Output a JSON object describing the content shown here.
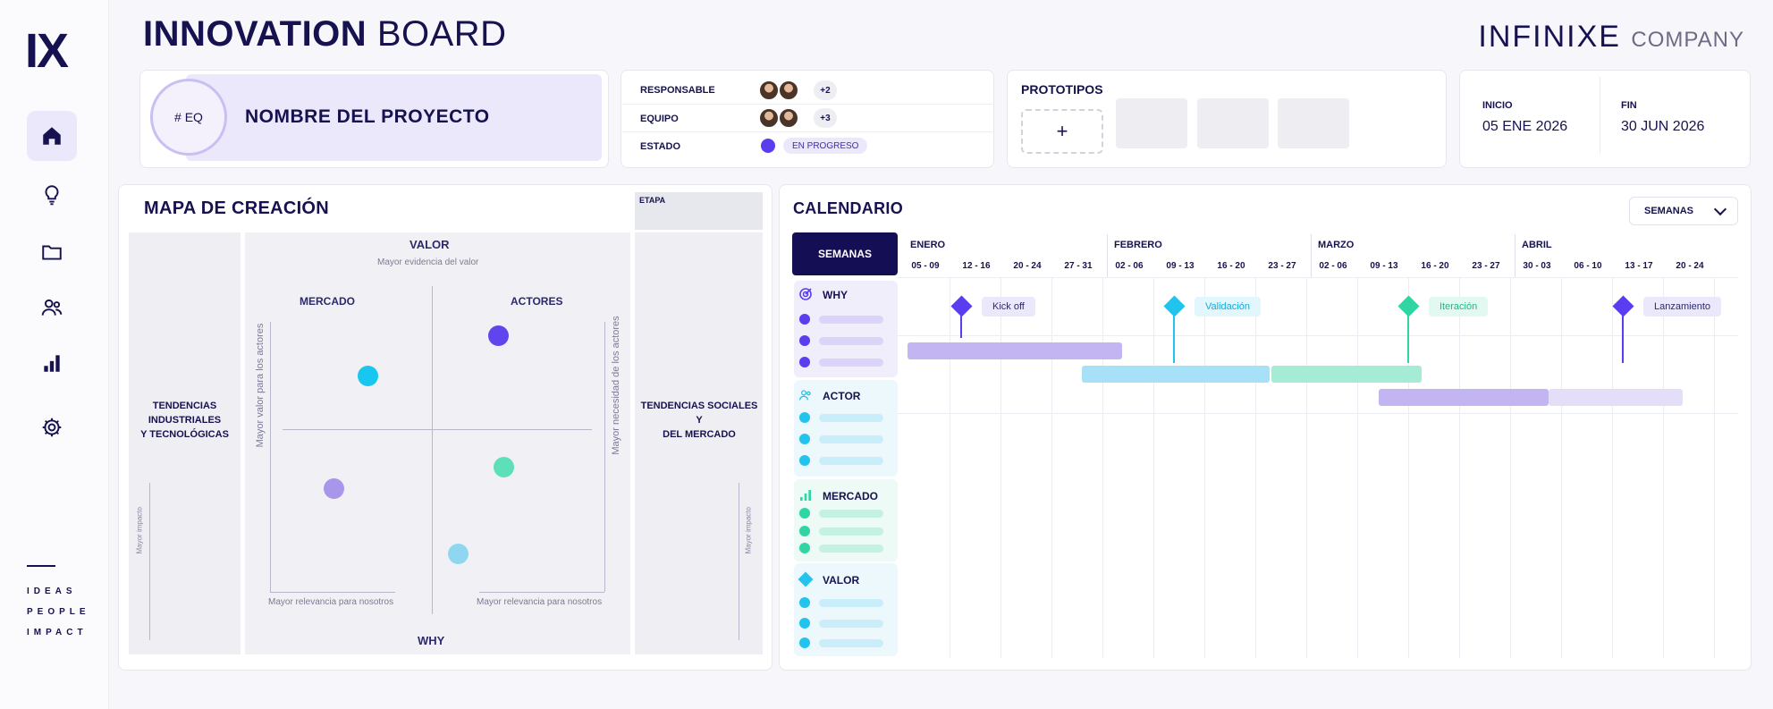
{
  "sidebar": {
    "logo": "IX",
    "nav": [
      "home-icon",
      "lightbulb-icon",
      "folder-icon",
      "users-icon",
      "bar-chart-icon",
      "gear-icon"
    ],
    "tagline": [
      "IDEAS",
      "PEOPLE",
      "IMPACT"
    ]
  },
  "header": {
    "title_bold": "INNOVATION",
    "title_light": "BOARD",
    "brand_main": "INFINIXE",
    "brand_sub": "COMPANY"
  },
  "project": {
    "team_code": "# EQ",
    "name": "NOMBRE DEL PROYECTO"
  },
  "info": {
    "responsable_label": "RESPONSABLE",
    "responsable_more": "+2",
    "equipo_label": "EQUIPO",
    "equipo_more": "+3",
    "estado_label": "ESTADO",
    "estado_value": "EN PROGRESO"
  },
  "prototypes": {
    "title": "PROTOTIPOS",
    "add": "+"
  },
  "dates": {
    "start_label": "INICIO",
    "start_value": "05 ENE 2026",
    "end_label": "FIN",
    "end_value": "30 JUN 2026"
  },
  "map": {
    "title": "MAPA DE CREACIÓN",
    "stage_label": "ETAPA",
    "left_text": [
      "TENDENCIAS",
      "INDUSTRIALES",
      "Y TECNOLÓGICAS"
    ],
    "right_text": [
      "TENDENCIAS SOCIALES Y",
      "DEL MERCADO"
    ],
    "side_small": "Mayor impacto",
    "top_label": "VALOR",
    "top_sub": "Mayor evidencia del valor",
    "bottom_label": "WHY",
    "q_left": "MERCADO",
    "q_right": "ACTORES",
    "left_axis": "Mayor valor para los actores",
    "right_axis": "Mayor necesidad de los actores",
    "bottom_left": "Mayor relevancia para nosotros",
    "bottom_right": "Mayor relevancia para nosotros"
  },
  "calendar": {
    "title": "CALENDARIO",
    "select_value": "SEMANAS",
    "weeks_label": "SEMANAS",
    "months": [
      "ENERO",
      "FEBRERO",
      "MARZO",
      "ABRIL"
    ],
    "weeks": [
      "05 - 09",
      "12 - 16",
      "20 - 24",
      "27 - 31",
      "02 - 06",
      "09 - 13",
      "16 - 20",
      "23 - 27",
      "02 - 06",
      "09 - 13",
      "16 - 20",
      "23 - 27",
      "30 - 03",
      "06 - 10",
      "13 - 17",
      "20 - 24"
    ],
    "categories": [
      {
        "name": "WHY",
        "icon": "target-icon",
        "color": "#5b3df0"
      },
      {
        "name": "ACTOR",
        "icon": "users-icon",
        "color": "#22c4ee"
      },
      {
        "name": "MERCADO",
        "icon": "bar-chart-icon",
        "color": "#2fd6a4"
      },
      {
        "name": "VALOR",
        "icon": "diamond-icon",
        "color": "#22c4ee"
      }
    ],
    "milestones": [
      {
        "label": "Kick off",
        "color": "#5b3df0"
      },
      {
        "label": "Validación",
        "color": "#22c4ee"
      },
      {
        "label": "Iteración",
        "color": "#2fd6a4"
      },
      {
        "label": "Lanzamiento",
        "color": "#5b3df0"
      }
    ]
  },
  "colors": {
    "navy": "#16124f",
    "purple": "#5b3df0",
    "cyan": "#22c4ee",
    "green": "#2fd6a4",
    "lavender": "#ece8fb"
  }
}
